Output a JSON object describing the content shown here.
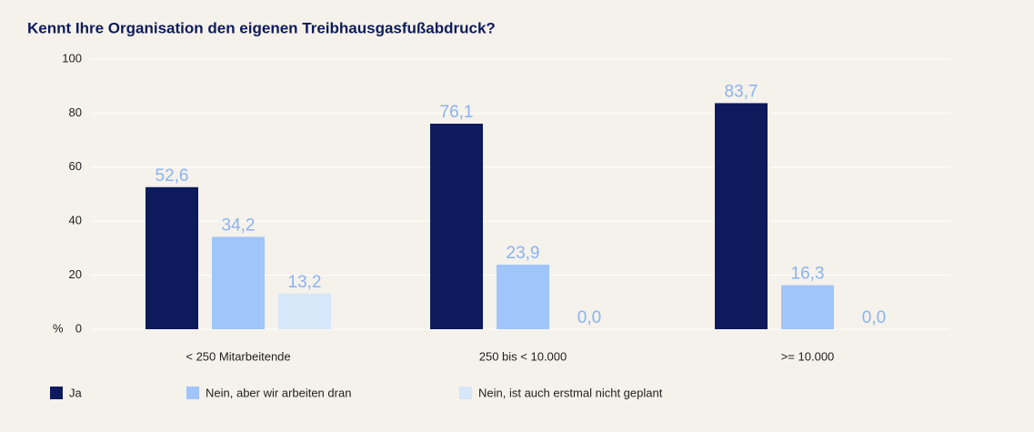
{
  "chart_data": {
    "type": "bar",
    "title": "Kennt Ihre Organisation den eigenen Treibhausgasfußabdruck?",
    "ylabel": "%",
    "categories": [
      "< 250 Mitarbeitende",
      "250 bis < 10.000",
      ">= 10.000"
    ],
    "series": [
      {
        "name": "Ja",
        "color": "#0d1b5c",
        "values": [
          52.6,
          76.1,
          83.7
        ],
        "value_labels": [
          "52,6",
          "76,1",
          "83,7"
        ]
      },
      {
        "name": "Nein, aber wir arbeiten dran",
        "color": "#9fc5fa",
        "values": [
          34.2,
          23.9,
          16.3
        ],
        "value_labels": [
          "34,2",
          "23,9",
          "16,3"
        ]
      },
      {
        "name": "Nein, ist auch erstmal nicht geplant",
        "color": "#d5e7f8",
        "values": [
          13.2,
          0.0,
          0.0
        ],
        "value_labels": [
          "13,2",
          "0,0",
          "0,0"
        ]
      }
    ],
    "ylim": [
      0,
      100
    ],
    "yticks": [
      0,
      20,
      40,
      60,
      80,
      100
    ],
    "grid": true,
    "legend": "bottom"
  }
}
